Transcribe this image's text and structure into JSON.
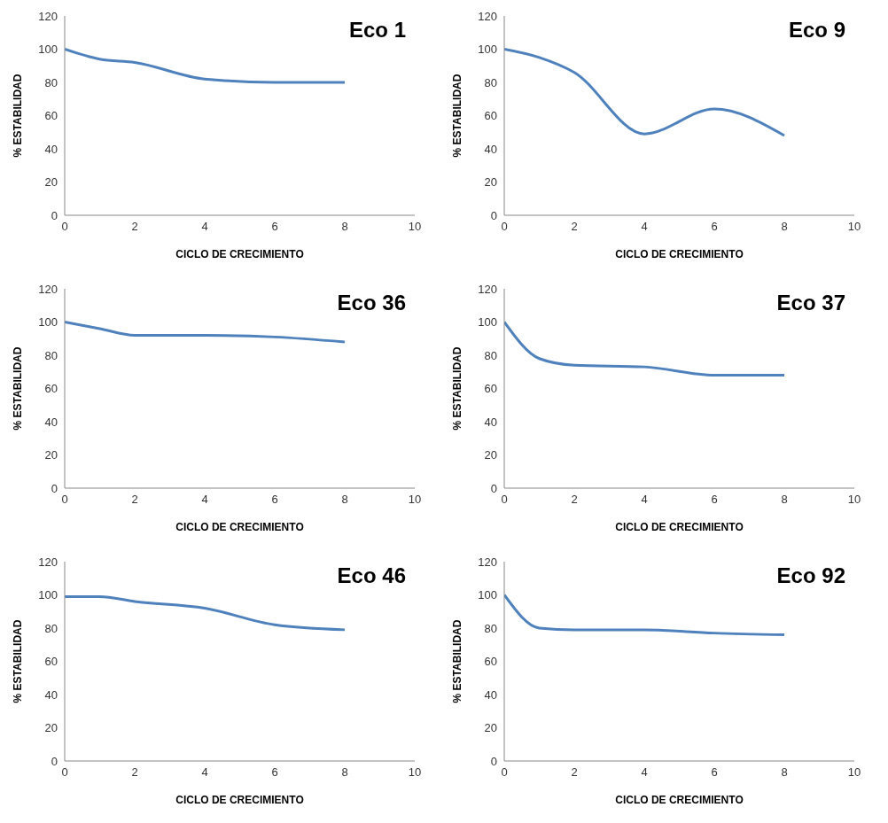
{
  "chart_data": [
    {
      "type": "line",
      "title": "Eco 1",
      "xlabel": "CICLO DE CRECIMIENTO",
      "ylabel": "% ESTABILIDAD",
      "x": [
        0,
        1,
        2,
        4,
        6,
        8
      ],
      "values": [
        100,
        94,
        92,
        82,
        80,
        80
      ],
      "color": "#4f81bd",
      "xlim": [
        0,
        10
      ],
      "xticks": [
        0,
        2,
        4,
        6,
        8,
        10
      ],
      "ylim": [
        0,
        120
      ],
      "yticks": [
        0,
        20,
        40,
        60,
        80,
        100,
        120
      ],
      "marker": "none"
    },
    {
      "type": "line",
      "title": "Eco 9",
      "xlabel": "CICLO DE CRECIMIENTO",
      "ylabel": "% ESTABILIDAD",
      "x": [
        0,
        1,
        2,
        4,
        6,
        8
      ],
      "values": [
        100,
        95,
        86,
        49,
        64,
        48
      ],
      "color": "#4f81bd",
      "xlim": [
        0,
        10
      ],
      "xticks": [
        0,
        2,
        4,
        6,
        8,
        10
      ],
      "ylim": [
        0,
        120
      ],
      "yticks": [
        0,
        20,
        40,
        60,
        80,
        100,
        120
      ],
      "marker": "none"
    },
    {
      "type": "line",
      "title": "Eco 36",
      "xlabel": "CICLO DE CRECIMIENTO",
      "ylabel": "% ESTABILIDAD",
      "x": [
        0,
        1,
        2,
        4,
        6,
        8
      ],
      "values": [
        100,
        96,
        92,
        92,
        91,
        88
      ],
      "color": "#4f81bd",
      "xlim": [
        0,
        10
      ],
      "xticks": [
        0,
        2,
        4,
        6,
        8,
        10
      ],
      "ylim": [
        0,
        120
      ],
      "yticks": [
        0,
        20,
        40,
        60,
        80,
        100,
        120
      ],
      "marker": "none"
    },
    {
      "type": "line",
      "title": "Eco 37",
      "xlabel": "CICLO DE CRECIMIENTO",
      "ylabel": "% ESTABILIDAD",
      "x": [
        0,
        1,
        2,
        4,
        6,
        8
      ],
      "values": [
        100,
        78,
        74,
        73,
        68,
        68
      ],
      "color": "#4f81bd",
      "xlim": [
        0,
        10
      ],
      "xticks": [
        0,
        2,
        4,
        6,
        8,
        10
      ],
      "ylim": [
        0,
        120
      ],
      "yticks": [
        0,
        20,
        40,
        60,
        80,
        100,
        120
      ],
      "marker": "none"
    },
    {
      "type": "line",
      "title": "Eco 46",
      "xlabel": "CICLO DE CRECIMIENTO",
      "ylabel": "% ESTABILIDAD",
      "x": [
        0,
        1,
        2,
        4,
        6,
        8
      ],
      "values": [
        99,
        99,
        96,
        92,
        82,
        79
      ],
      "color": "#4f81bd",
      "xlim": [
        0,
        10
      ],
      "xticks": [
        0,
        2,
        4,
        6,
        8,
        10
      ],
      "ylim": [
        0,
        120
      ],
      "yticks": [
        0,
        20,
        40,
        60,
        80,
        100,
        120
      ],
      "marker": "none"
    },
    {
      "type": "line",
      "title": "Eco 92",
      "xlabel": "CICLO DE CRECIMIENTO",
      "ylabel": "% ESTABILIDAD",
      "x": [
        0,
        1,
        2,
        4,
        6,
        8
      ],
      "values": [
        100,
        80,
        79,
        79,
        77,
        76
      ],
      "color": "#4f81bd",
      "xlim": [
        0,
        10
      ],
      "xticks": [
        0,
        2,
        4,
        6,
        8,
        10
      ],
      "ylim": [
        0,
        120
      ],
      "yticks": [
        0,
        20,
        40,
        60,
        80,
        100,
        120
      ],
      "marker": "none"
    }
  ]
}
